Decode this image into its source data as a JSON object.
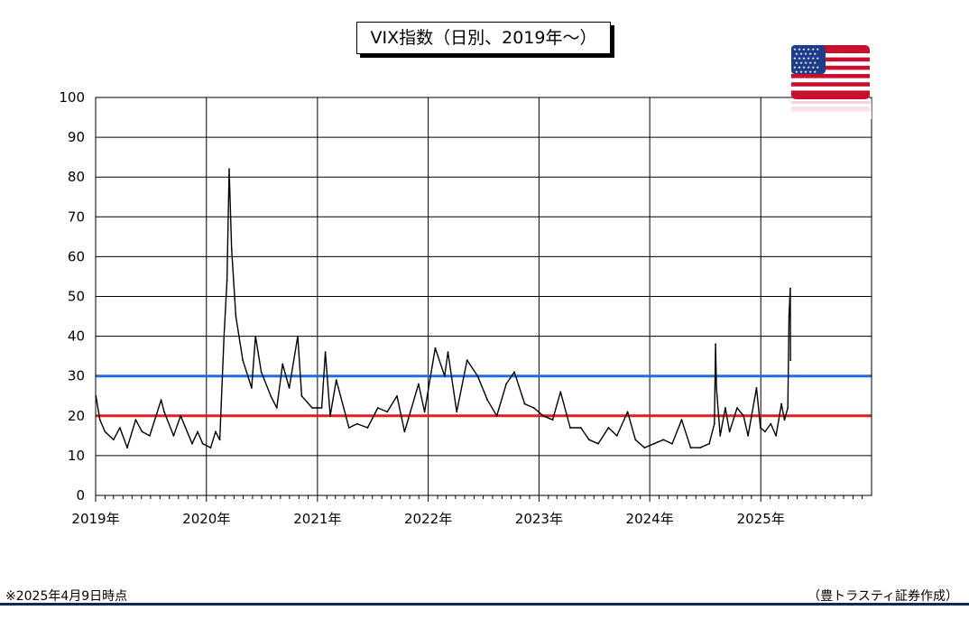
{
  "title": "VIX指数（日別、2019年～）",
  "note": "※2025年4月9日時点",
  "credit": "（豊トラスティ証券作成）",
  "flag_icon": "us-flag-icon",
  "chart_data": {
    "type": "line",
    "title": "VIX指数（日別、2019年～）",
    "xlabel": "",
    "ylabel": "",
    "x_tick_labels": [
      "2019年",
      "2020年",
      "2021年",
      "2022年",
      "2023年",
      "2024年",
      "2025年"
    ],
    "y_ticks": [
      0,
      10,
      20,
      30,
      40,
      50,
      60,
      70,
      80,
      90,
      100
    ],
    "ylim": [
      0,
      100
    ],
    "xlim": [
      "2019-01-01",
      "2026-01-01"
    ],
    "grid": true,
    "reference_lines": [
      {
        "value": 30,
        "color": "#1f6fe0"
      },
      {
        "value": 20,
        "color": "#e01f1f"
      }
    ],
    "series": [
      {
        "color": "#000000",
        "x": [
          "2019-01-02",
          "2019-01-15",
          "2019-02-01",
          "2019-03-01",
          "2019-03-22",
          "2019-04-15",
          "2019-05-13",
          "2019-06-03",
          "2019-06-28",
          "2019-08-05",
          "2019-08-15",
          "2019-09-15",
          "2019-10-08",
          "2019-11-15",
          "2019-12-03",
          "2019-12-20",
          "2020-01-15",
          "2020-01-31",
          "2020-02-14",
          "2020-02-28",
          "2020-03-09",
          "2020-03-16",
          "2020-03-24",
          "2020-04-07",
          "2020-04-30",
          "2020-05-29",
          "2020-06-11",
          "2020-06-30",
          "2020-07-31",
          "2020-08-20",
          "2020-09-08",
          "2020-09-30",
          "2020-10-28",
          "2020-11-10",
          "2020-12-15",
          "2021-01-15",
          "2021-01-27",
          "2021-02-12",
          "2021-03-04",
          "2021-04-15",
          "2021-05-12",
          "2021-06-15",
          "2021-07-19",
          "2021-08-19",
          "2021-09-20",
          "2021-10-15",
          "2021-11-30",
          "2021-12-20",
          "2022-01-24",
          "2022-02-24",
          "2022-03-07",
          "2022-04-05",
          "2022-05-09",
          "2022-06-13",
          "2022-07-15",
          "2022-08-15",
          "2022-09-15",
          "2022-10-12",
          "2022-11-15",
          "2022-12-15",
          "2023-01-15",
          "2023-02-15",
          "2023-03-13",
          "2023-04-14",
          "2023-05-19",
          "2023-06-15",
          "2023-07-15",
          "2023-08-18",
          "2023-09-15",
          "2023-10-20",
          "2023-11-15",
          "2023-12-15",
          "2024-01-15",
          "2024-02-15",
          "2024-03-15",
          "2024-04-15",
          "2024-05-15",
          "2024-06-15",
          "2024-07-15",
          "2024-08-01",
          "2024-08-05",
          "2024-08-08",
          "2024-08-20",
          "2024-09-06",
          "2024-09-20",
          "2024-10-15",
          "2024-11-05",
          "2024-11-20",
          "2024-12-18",
          "2024-12-31",
          "2025-01-15",
          "2025-02-03",
          "2025-02-20",
          "2025-03-10",
          "2025-03-20",
          "2025-03-31",
          "2025-04-04",
          "2025-04-08",
          "2025-04-09"
        ],
        "y": [
          25,
          19,
          16,
          14,
          17,
          12,
          19,
          16,
          15,
          24,
          21,
          15,
          20,
          13,
          16,
          13,
          12,
          16,
          14,
          40,
          54,
          82,
          62,
          45,
          34,
          27,
          40,
          31,
          25,
          22,
          33,
          27,
          40,
          25,
          22,
          22,
          36,
          20,
          29,
          17,
          18,
          17,
          22,
          21,
          25,
          16,
          28,
          21,
          37,
          30,
          36,
          21,
          34,
          30,
          24,
          20,
          28,
          31,
          23,
          22,
          20,
          19,
          26,
          17,
          17,
          14,
          13,
          17,
          15,
          21,
          14,
          12,
          13,
          14,
          13,
          19,
          12,
          12,
          13,
          18,
          38,
          27,
          15,
          22,
          16,
          22,
          20,
          15,
          27,
          17,
          16,
          18,
          15,
          23,
          19,
          22,
          45,
          52,
          34
        ]
      }
    ]
  }
}
